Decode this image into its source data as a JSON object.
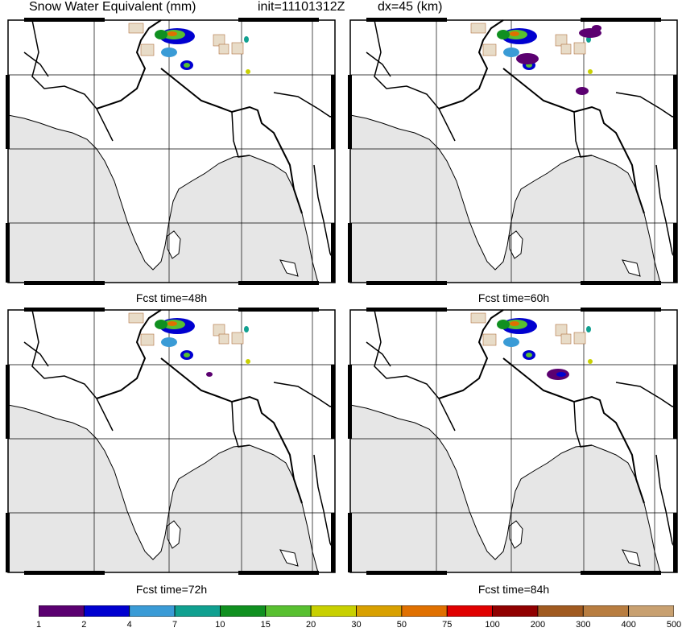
{
  "header": {
    "variable": "Snow Water Equivalent (mm)",
    "init": "init=11101312Z",
    "dx": "dx=45 (km)"
  },
  "panels": [
    {
      "forecast_label": "Fcst time=48h"
    },
    {
      "forecast_label": "Fcst time=60h"
    },
    {
      "forecast_label": "Fcst time=72h"
    },
    {
      "forecast_label": "Fcst time=84h"
    }
  ],
  "colorbar": {
    "ticks": [
      "1",
      "2",
      "4",
      "7",
      "10",
      "15",
      "20",
      "30",
      "50",
      "75",
      "100",
      "200",
      "300",
      "400",
      "500"
    ],
    "colors": [
      "#5b0070",
      "#0000d0",
      "#3a9bd6",
      "#10a090",
      "#109020",
      "#58c030",
      "#c8d000",
      "#d8a000",
      "#e07000",
      "#e00000",
      "#900000",
      "#a05a20",
      "#b87d40",
      "#c8a070",
      "#e8dcc8"
    ]
  },
  "map_colors": {
    "land": "#ffffff",
    "ocean": "#e6e6e6",
    "border": "#000000"
  }
}
